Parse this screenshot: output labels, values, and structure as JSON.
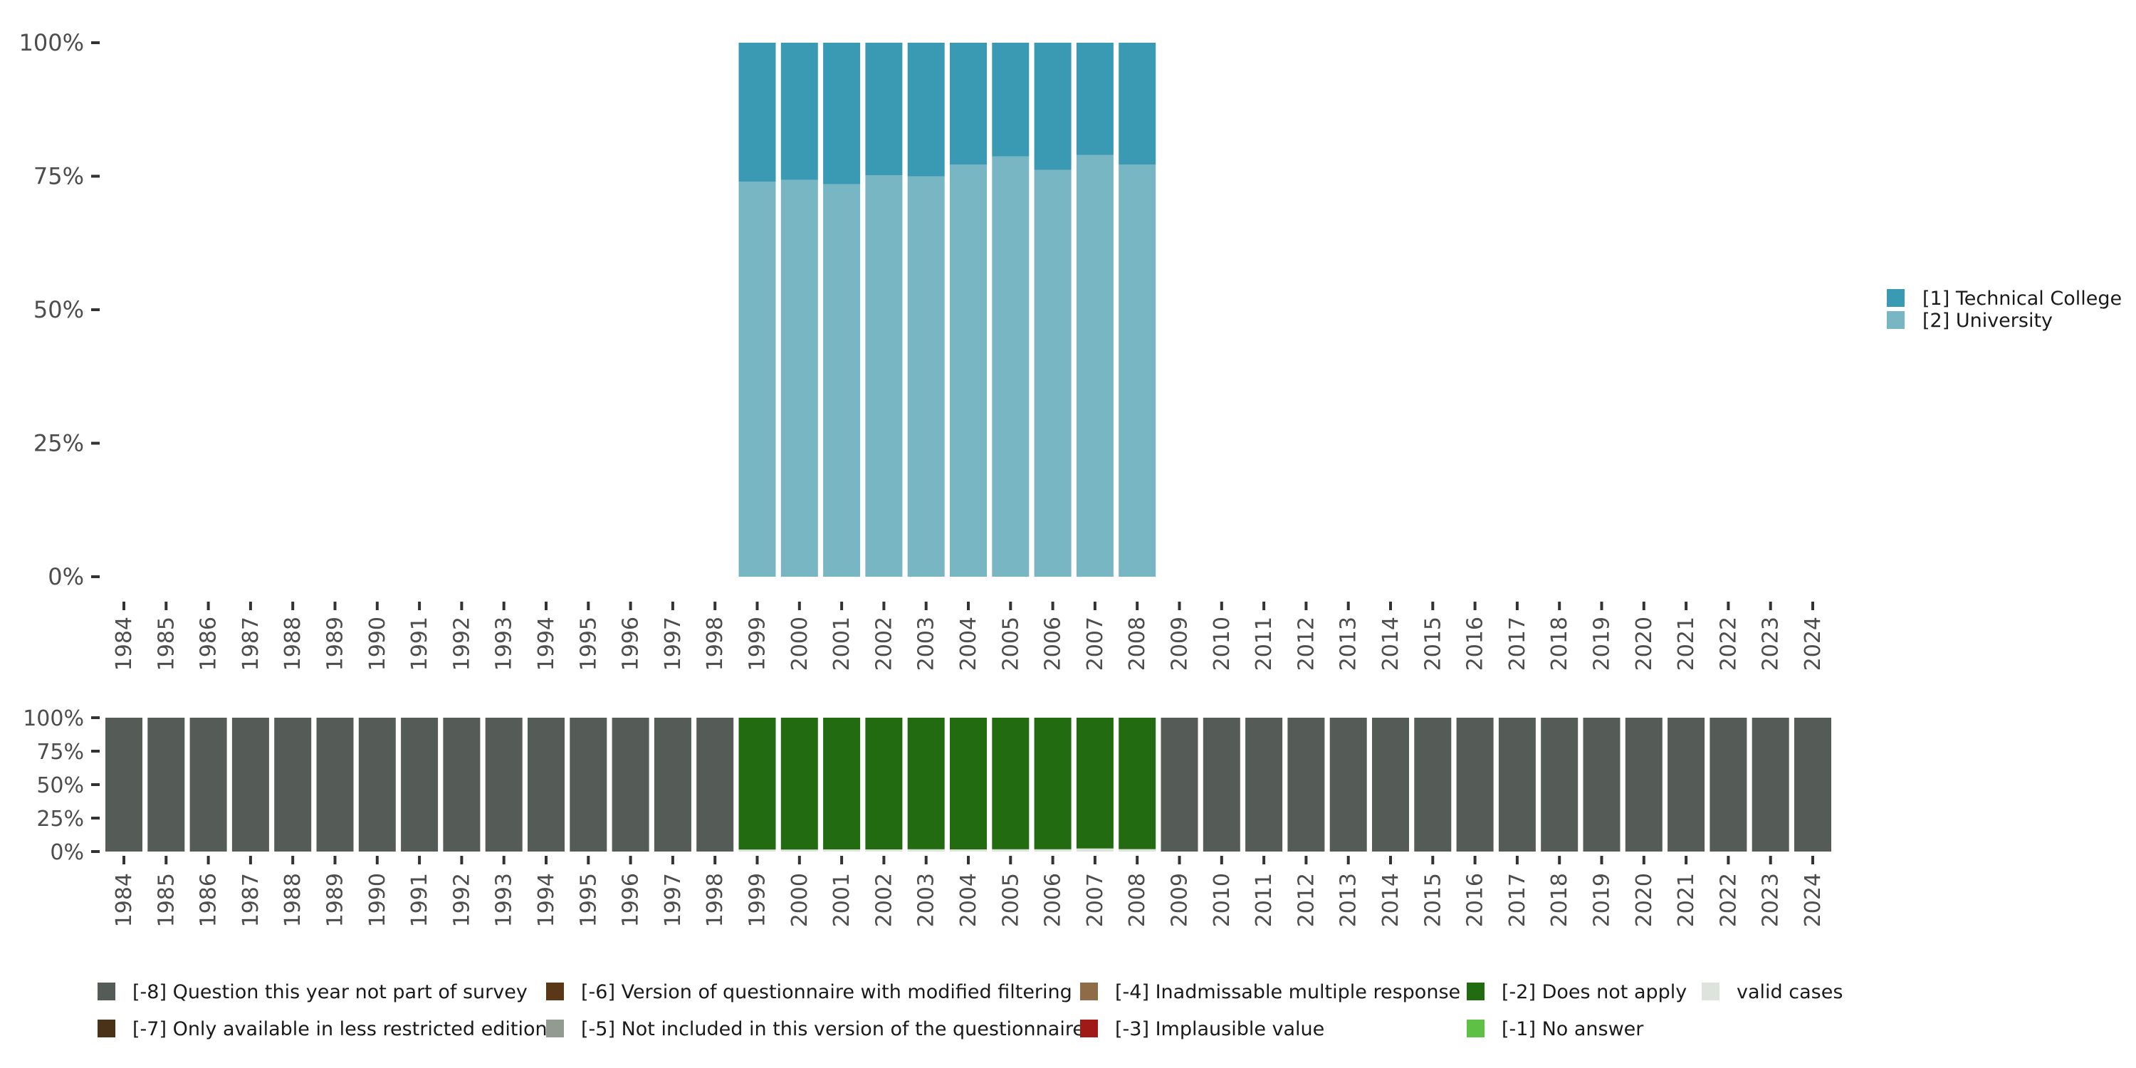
{
  "chart_data": [
    {
      "type": "bar",
      "stacked": true,
      "name": "valid-responses-share",
      "title": "",
      "xlabel": "",
      "ylabel": "",
      "ylim": [
        0,
        100
      ],
      "y_ticks": [
        "0%",
        "25%",
        "50%",
        "75%",
        "100%"
      ],
      "grid": false,
      "legend_position": "right",
      "categories": [
        "1984",
        "1985",
        "1986",
        "1987",
        "1988",
        "1989",
        "1990",
        "1991",
        "1992",
        "1993",
        "1994",
        "1995",
        "1996",
        "1997",
        "1998",
        "1999",
        "2000",
        "2001",
        "2002",
        "2003",
        "2004",
        "2005",
        "2006",
        "2007",
        "2008",
        "2009",
        "2010",
        "2011",
        "2012",
        "2013",
        "2014",
        "2015",
        "2016",
        "2017",
        "2018",
        "2019",
        "2020",
        "2021",
        "2022",
        "2023",
        "2024"
      ],
      "series": [
        {
          "name": "[2] University",
          "color": "#79b6c4",
          "values": [
            null,
            null,
            null,
            null,
            null,
            null,
            null,
            null,
            null,
            null,
            null,
            null,
            null,
            null,
            null,
            74,
            74.3,
            73.5,
            75.2,
            75,
            77.2,
            78.7,
            76.2,
            79,
            77.2,
            null,
            null,
            null,
            null,
            null,
            null,
            null,
            null,
            null,
            null,
            null,
            null,
            null,
            null,
            null,
            null
          ]
        },
        {
          "name": "[1] Technical College",
          "color": "#3a99b3",
          "values": [
            null,
            null,
            null,
            null,
            null,
            null,
            null,
            null,
            null,
            null,
            null,
            null,
            null,
            null,
            null,
            26,
            25.7,
            26.5,
            24.8,
            25,
            22.8,
            21.3,
            23.8,
            21,
            22.8,
            null,
            null,
            null,
            null,
            null,
            null,
            null,
            null,
            null,
            null,
            null,
            null,
            null,
            null,
            null,
            null
          ]
        }
      ],
      "legend": [
        "[1] Technical College",
        "[2] University"
      ]
    },
    {
      "type": "bar",
      "stacked": true,
      "name": "missing-codes-share",
      "title": "",
      "xlabel": "",
      "ylabel": "",
      "ylim": [
        0,
        100
      ],
      "y_ticks": [
        "0%",
        "25%",
        "50%",
        "75%",
        "100%"
      ],
      "grid": false,
      "legend_position": "bottom",
      "categories": [
        "1984",
        "1985",
        "1986",
        "1987",
        "1988",
        "1989",
        "1990",
        "1991",
        "1992",
        "1993",
        "1994",
        "1995",
        "1996",
        "1997",
        "1998",
        "1999",
        "2000",
        "2001",
        "2002",
        "2003",
        "2004",
        "2005",
        "2006",
        "2007",
        "2008",
        "2009",
        "2010",
        "2011",
        "2012",
        "2013",
        "2014",
        "2015",
        "2016",
        "2017",
        "2018",
        "2019",
        "2020",
        "2021",
        "2022",
        "2023",
        "2024"
      ],
      "series": [
        {
          "name": "valid cases",
          "color": "#dfe3dd",
          "values": [
            0,
            0,
            0,
            0,
            0,
            0,
            0,
            0,
            0,
            0,
            0,
            0,
            0,
            0,
            0,
            1.5,
            1.5,
            1.6,
            1.6,
            1.7,
            1.6,
            1.7,
            1.7,
            2.3,
            1.8,
            0,
            0,
            0,
            0,
            0,
            0,
            0,
            0,
            0,
            0,
            0,
            0,
            0,
            0,
            0,
            0
          ]
        },
        {
          "name": "[-2] Does not apply",
          "color": "#236b10",
          "values": [
            0,
            0,
            0,
            0,
            0,
            0,
            0,
            0,
            0,
            0,
            0,
            0,
            0,
            0,
            0,
            98.5,
            98.5,
            98.4,
            98.4,
            98.3,
            98.4,
            98.3,
            98.3,
            97.7,
            98.2,
            0,
            0,
            0,
            0,
            0,
            0,
            0,
            0,
            0,
            0,
            0,
            0,
            0,
            0,
            0,
            0
          ]
        },
        {
          "name": "[-8] Question this year not part of survey",
          "color": "#555b56",
          "values": [
            100,
            100,
            100,
            100,
            100,
            100,
            100,
            100,
            100,
            100,
            100,
            100,
            100,
            100,
            100,
            0,
            0,
            0,
            0,
            0,
            0,
            0,
            0,
            0,
            0,
            100,
            100,
            100,
            100,
            100,
            100,
            100,
            100,
            100,
            100,
            100,
            100,
            100,
            100,
            100,
            100
          ]
        }
      ],
      "legend": [
        {
          "label": "[-8] Question this year not part of survey",
          "color": "#555b56"
        },
        {
          "label": "[-7] Only available in less restricted edition",
          "color": "#4a3218"
        },
        {
          "label": "[-6] Version of questionnaire with modified filtering",
          "color": "#5a3716"
        },
        {
          "label": "[-5] Not included in this version of the questionnaire",
          "color": "#939a92"
        },
        {
          "label": "[-4] Inadmissable multiple response",
          "color": "#8e6c48"
        },
        {
          "label": "[-3] Implausible value",
          "color": "#a01a18"
        },
        {
          "label": "[-2] Does not apply",
          "color": "#236b10"
        },
        {
          "label": "[-1] No answer",
          "color": "#5ec146"
        },
        {
          "label": "valid cases",
          "color": "#dfe3dd"
        }
      ]
    }
  ]
}
